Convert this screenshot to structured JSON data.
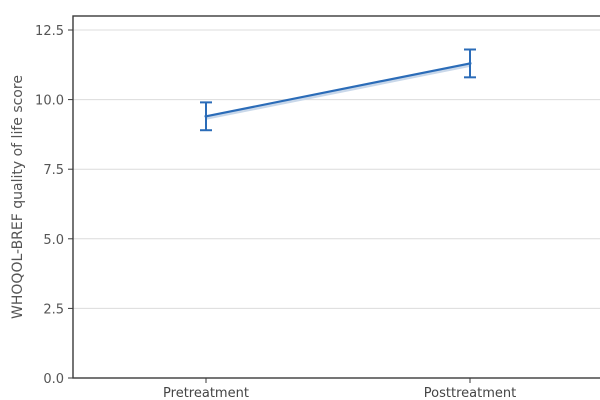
{
  "chart_data": {
    "type": "line",
    "title": "",
    "xlabel": "",
    "ylabel": "WHOQOL-BREF quality of life score",
    "ylim": [
      0,
      12.5
    ],
    "yticks": [
      "0.0",
      "2.5",
      "5.0",
      "7.5",
      "10.0",
      "12.5"
    ],
    "ytick_values": [
      0,
      2.5,
      5,
      7.5,
      10,
      12.5
    ],
    "categories": [
      "Pretreatment",
      "Posttreatment"
    ],
    "series": [
      {
        "values": [
          9.4,
          11.3
        ],
        "error_low": [
          8.9,
          10.8
        ],
        "error_high": [
          9.9,
          11.8
        ],
        "color": "#2b6cb8"
      }
    ],
    "grid": true,
    "legend": "none"
  }
}
